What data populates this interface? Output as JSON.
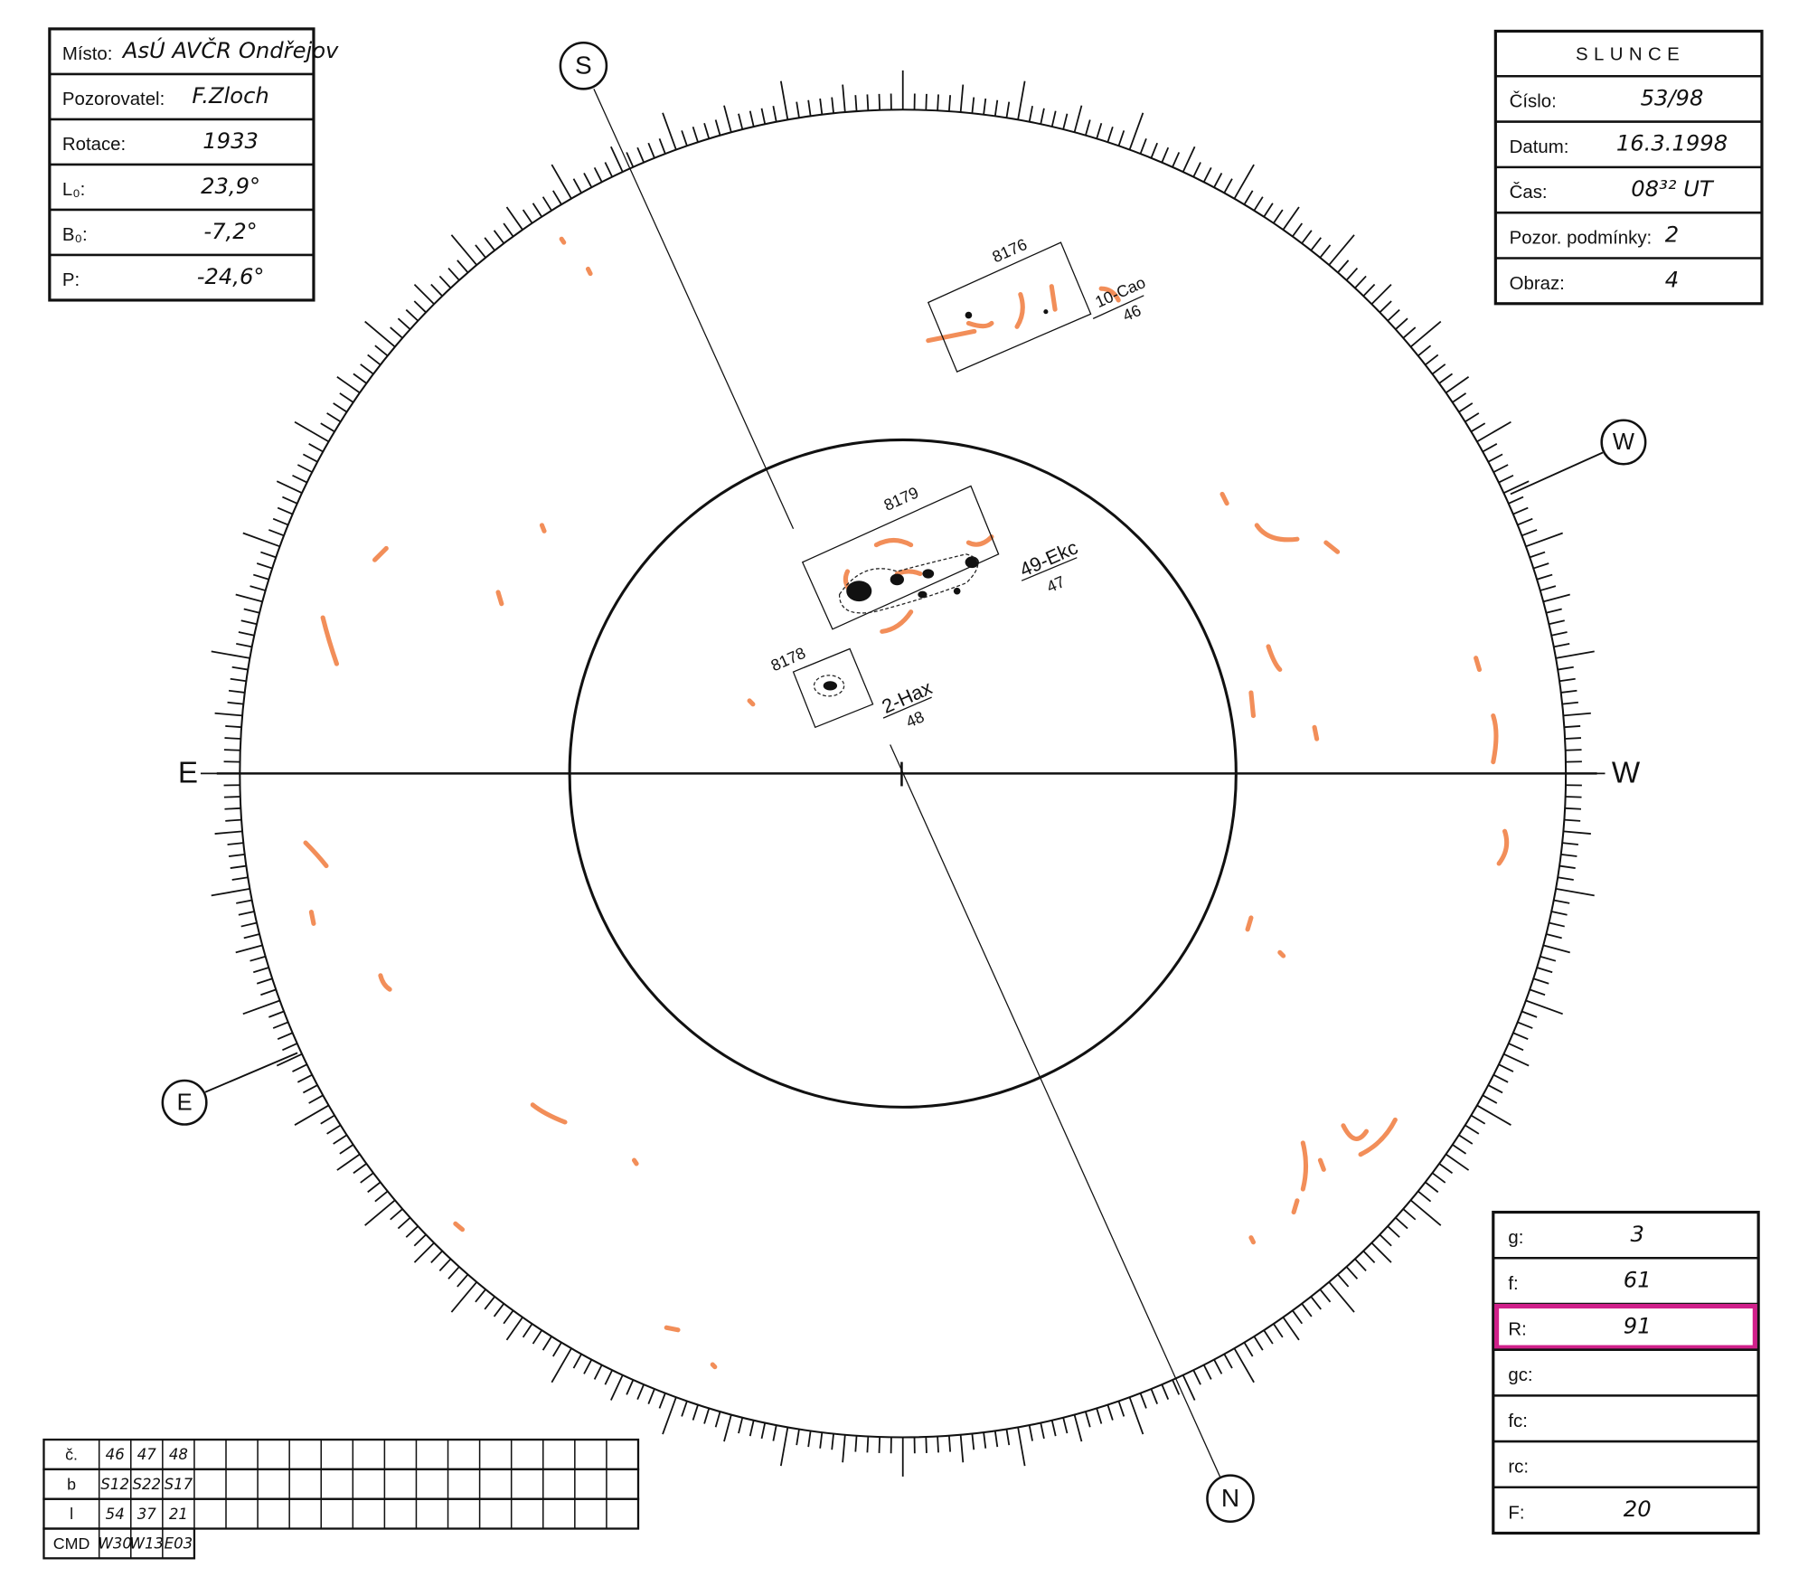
{
  "left_box": {
    "rows": [
      {
        "label": "Místo:",
        "value": "AsÚ AVČR Ondřejov"
      },
      {
        "label": "Pozorovatel:",
        "value": "F.Zloch"
      },
      {
        "label": "Rotace:",
        "value": "1933"
      },
      {
        "label": "L₀:",
        "value": "23,9°"
      },
      {
        "label": "B₀:",
        "value": "-7,2°"
      },
      {
        "label": "P:",
        "value": "-24,6°"
      }
    ]
  },
  "right_box": {
    "title": "SLUNCE",
    "rows": [
      {
        "label": "Číslo:",
        "value": "53/98"
      },
      {
        "label": "Datum:",
        "value": "16.3.1998"
      },
      {
        "label": "Čas:",
        "value": "08³² UT"
      },
      {
        "label": "Pozor. podmínky:",
        "value": "2"
      },
      {
        "label": "Obraz:",
        "value": "4"
      }
    ]
  },
  "counts_box": {
    "rows": [
      {
        "label": "g:",
        "value": "3"
      },
      {
        "label": "f:",
        "value": "61"
      },
      {
        "label": "R:",
        "value": "91"
      },
      {
        "label": "gc:",
        "value": ""
      },
      {
        "label": "fc:",
        "value": ""
      },
      {
        "label": "rc:",
        "value": ""
      },
      {
        "label": "F:",
        "value": "20"
      }
    ]
  },
  "group_table": {
    "rows": [
      {
        "label": "č.",
        "values": [
          "46",
          "47",
          "48"
        ]
      },
      {
        "label": "b",
        "values": [
          "S12",
          "S22",
          "S17"
        ]
      },
      {
        "label": "l",
        "values": [
          "54",
          "37",
          "21"
        ]
      },
      {
        "label": "CMD",
        "values": [
          "W30",
          "W13",
          "E03"
        ]
      }
    ]
  },
  "disk": {
    "s_label": "S",
    "n_label": "N",
    "w_circle_label": "W",
    "e_circle_label": "E",
    "e_label": "E",
    "w_label": "W"
  },
  "groups": [
    {
      "number": "8176",
      "class": "10-Cao",
      "id": "46"
    },
    {
      "number": "8179",
      "class": "49-Ekc",
      "id": "47"
    },
    {
      "number": "8178",
      "class": "2-Hax",
      "id": "48"
    }
  ]
}
